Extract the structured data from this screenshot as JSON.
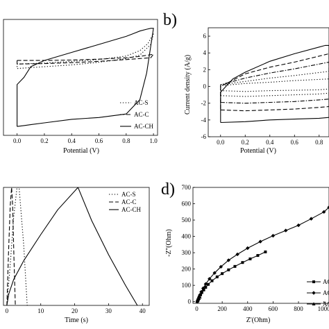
{
  "chart_data": [
    {
      "type": "line",
      "panel_label": "",
      "xlabel": "Potential (V)",
      "ylabel": "",
      "xlim": [
        -0.1,
        1.03
      ],
      "ylim": [
        -8,
        5
      ],
      "xticks": [
        "0.0",
        "0.2",
        "0.4",
        "0.6",
        "0.8",
        "1.0"
      ],
      "yticks": [],
      "legend_position": "bottom-right",
      "series": [
        {
          "name": "AC-S",
          "style": "dotted",
          "x": [
            0.0,
            0.2,
            0.4,
            0.6,
            0.8,
            0.9,
            0.96,
            1.0,
            0.98,
            0.9,
            0.8,
            0.6,
            0.4,
            0.2,
            0.0,
            0.0
          ],
          "y": [
            0.0,
            0.1,
            0.3,
            0.5,
            0.9,
            1.5,
            2.3,
            3.4,
            2.2,
            1.0,
            0.6,
            0.2,
            -0.1,
            -0.3,
            -0.5,
            0.0
          ]
        },
        {
          "name": "AC-C",
          "style": "dashed",
          "x": [
            0.0,
            0.2,
            0.4,
            0.6,
            0.8,
            0.9,
            1.0,
            0.98,
            0.8,
            0.6,
            0.4,
            0.2,
            0.0,
            0.0
          ],
          "y": [
            0.4,
            0.4,
            0.45,
            0.55,
            0.7,
            0.85,
            1.1,
            0.7,
            0.5,
            0.3,
            0.15,
            0.05,
            0.0,
            0.4
          ]
        },
        {
          "name": "AC-CH",
          "style": "solid",
          "x": [
            0.0,
            0.05,
            0.1,
            0.2,
            0.4,
            0.6,
            0.8,
            0.9,
            0.95,
            1.0,
            0.98,
            0.95,
            0.9,
            0.85,
            0.8,
            0.6,
            0.4,
            0.2,
            0.1,
            0.05,
            0.0,
            0.0
          ],
          "y": [
            -7.0,
            -6.9,
            -6.8,
            -6.6,
            -6.2,
            -6.0,
            -5.6,
            -4.0,
            -1.0,
            4.0,
            4.0,
            3.9,
            3.7,
            3.4,
            3.1,
            2.2,
            1.3,
            0.4,
            -0.3,
            -1.5,
            -2.3,
            -7.0
          ]
        }
      ]
    },
    {
      "type": "line",
      "panel_label": "b)",
      "xlabel": "Potential (V)",
      "ylabel": "Current density (A/g)",
      "xlim": [
        -0.1,
        0.88
      ],
      "ylim": [
        -6,
        7
      ],
      "xticks": [
        "0.0",
        "0.2",
        "0.4",
        "0.6",
        "0.8"
      ],
      "yticks": [
        "-6",
        "-4",
        "-2",
        "0",
        "2",
        "4",
        "6"
      ],
      "series": [
        {
          "name": "",
          "style": "solid",
          "x": [
            0.0,
            0.2,
            0.4,
            0.6,
            0.8,
            0.88,
            0.88,
            0.85,
            0.8,
            0.6,
            0.4,
            0.2,
            0.1,
            0.05,
            0.0,
            0.0
          ],
          "y": [
            -4.3,
            -4.2,
            -4.0,
            -3.9,
            -3.8,
            -3.7,
            4.9,
            4.9,
            4.7,
            3.9,
            3.0,
            1.7,
            0.9,
            0.1,
            -0.7,
            -4.3
          ]
        },
        {
          "name": "",
          "style": "dashed",
          "x": [
            0.0,
            0.2,
            0.4,
            0.6,
            0.8,
            0.88,
            0.88,
            0.6,
            0.4,
            0.2,
            0.0,
            0.0
          ],
          "y": [
            -2.8,
            -2.9,
            -2.8,
            -2.7,
            -2.5,
            -2.4,
            3.9,
            2.9,
            2.3,
            1.5,
            0.0,
            -2.8
          ]
        },
        {
          "name": "",
          "style": "dashdot",
          "x": [
            0.0,
            0.2,
            0.4,
            0.6,
            0.8,
            0.88,
            0.88,
            0.6,
            0.4,
            0.2,
            0.0,
            0.0
          ],
          "y": [
            -1.9,
            -2.0,
            -1.9,
            -1.8,
            -1.6,
            -1.5,
            2.9,
            2.1,
            1.6,
            1.0,
            0.2,
            -1.9
          ]
        },
        {
          "name": "",
          "style": "dotted",
          "x": [
            0.0,
            0.2,
            0.4,
            0.6,
            0.8,
            0.88,
            0.88,
            0.6,
            0.4,
            0.2,
            0.0,
            0.0
          ],
          "y": [
            -1.1,
            -1.2,
            -1.1,
            -1.0,
            -0.9,
            -0.8,
            1.8,
            1.3,
            1.0,
            0.6,
            0.2,
            -1.1
          ]
        },
        {
          "name": "",
          "style": "dotted",
          "x": [
            0.0,
            0.2,
            0.4,
            0.6,
            0.8,
            0.88,
            0.88,
            0.6,
            0.4,
            0.2,
            0.0,
            0.0
          ],
          "y": [
            -0.5,
            -0.6,
            -0.5,
            -0.45,
            -0.4,
            -0.3,
            0.9,
            0.7,
            0.5,
            0.35,
            0.1,
            -0.5
          ]
        }
      ]
    },
    {
      "type": "line",
      "panel_label": "",
      "xlabel": "Time (s)",
      "ylabel": "",
      "xlim": [
        -1,
        42
      ],
      "ylim": [
        0,
        1
      ],
      "xticks": [
        "0",
        "10",
        "20",
        "30",
        "40"
      ],
      "yticks": [],
      "legend_position": "top-right",
      "series": [
        {
          "name": "AC-S",
          "style": "dotted",
          "x": [
            0,
            1,
            2,
            3,
            3.6,
            4.3,
            5,
            5.6,
            6.0
          ],
          "y": [
            0.0,
            0.35,
            0.75,
            1.0,
            1.0,
            0.75,
            0.5,
            0.2,
            0.0
          ]
        },
        {
          "name": "AC-C",
          "style": "dashed",
          "x": [
            0,
            0.5,
            1.0,
            1.4,
            1.7,
            2.1,
            2.5
          ],
          "y": [
            0.0,
            0.45,
            0.85,
            1.0,
            0.85,
            0.4,
            0.0
          ]
        },
        {
          "name": "AC-CH",
          "style": "solid",
          "x": [
            0,
            0.3,
            0.6,
            2,
            5,
            10,
            15,
            21,
            22,
            25,
            30,
            35,
            38.5
          ],
          "y": [
            0.0,
            0.05,
            0.1,
            0.22,
            0.38,
            0.6,
            0.81,
            1.0,
            0.93,
            0.72,
            0.43,
            0.17,
            0.0
          ]
        }
      ]
    },
    {
      "type": "line",
      "panel_label": "d)",
      "xlabel": "Z'(Ohm)",
      "ylabel": "-Z''(Ohm)",
      "xlim": [
        -30,
        1040
      ],
      "ylim": [
        -10,
        700
      ],
      "xticks": [
        "0",
        "200",
        "400",
        "600",
        "800",
        "1000"
      ],
      "yticks": [
        "0",
        "100",
        "200",
        "300",
        "400",
        "500",
        "600",
        "700"
      ],
      "legend_entries": [
        "AC",
        "AC",
        "AC"
      ],
      "series": [
        {
          "name": "AC",
          "marker": "square",
          "x": [
            5,
            8,
            10,
            15,
            20,
            30,
            40,
            55,
            70,
            90,
            120,
            160,
            200,
            250,
            300,
            360,
            420,
            480,
            540
          ],
          "y": [
            2,
            6,
            12,
            20,
            30,
            42,
            56,
            72,
            88,
            106,
            128,
            152,
            172,
            195,
            216,
            240,
            262,
            283,
            305
          ]
        },
        {
          "name": "AC",
          "marker": "diamond",
          "x": [
            5,
            8,
            12,
            18,
            25,
            35,
            50,
            70,
            100,
            140,
            190,
            250,
            320,
            400,
            500,
            600,
            700,
            800,
            900,
            1000,
            1040
          ],
          "y": [
            2,
            8,
            16,
            28,
            42,
            60,
            82,
            108,
            140,
            176,
            214,
            254,
            290,
            328,
            368,
            404,
            436,
            468,
            508,
            550,
            578
          ]
        },
        {
          "name": "AC",
          "marker": "triangle",
          "x": [
            3,
            5,
            8,
            12,
            18,
            25
          ],
          "y": [
            2,
            5,
            9,
            14,
            20,
            28
          ]
        }
      ]
    }
  ]
}
